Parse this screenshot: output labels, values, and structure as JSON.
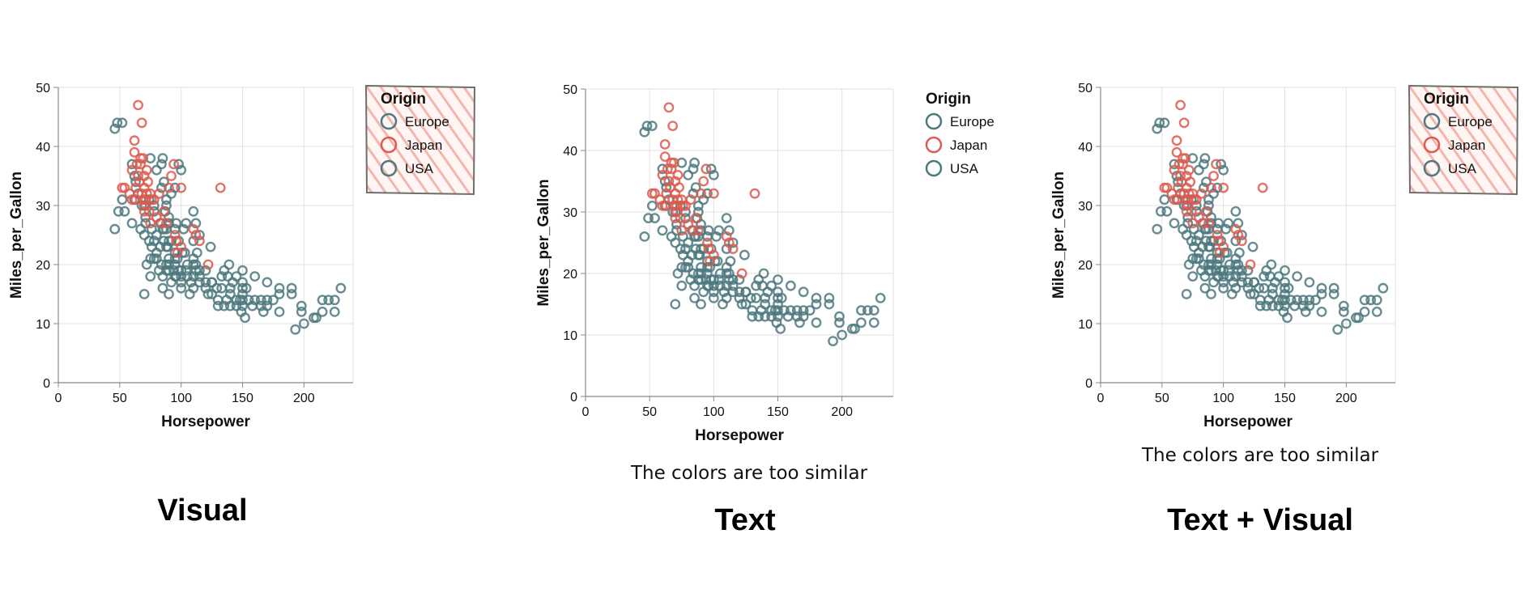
{
  "colors": {
    "Europe": "#4c787e",
    "Japan": "#dc5a4f",
    "USA": "#4c787e",
    "grid": "#e2e2e2",
    "axis": "#888888",
    "hatch_stroke": "#f3b6ae",
    "hatch_border": "#6e6e6e"
  },
  "panel_labels": [
    "Visual",
    "Text",
    "Text + Visual"
  ],
  "captions": [
    "",
    "The colors are too similar",
    "The colors are too similar"
  ],
  "legend_highlight": [
    true,
    false,
    true
  ],
  "chart_data": {
    "type": "scatter",
    "xlabel": "Horsepower",
    "ylabel": "Miles_per_Gallon",
    "xlim": [
      0,
      240
    ],
    "ylim": [
      0,
      50
    ],
    "x_ticks": [
      0,
      50,
      100,
      150,
      200
    ],
    "y_ticks": [
      0,
      10,
      20,
      30,
      40,
      50
    ],
    "grid": true,
    "marker": "hollow-circle",
    "legend": {
      "title": "Origin",
      "placement": "right",
      "entries": [
        "Europe",
        "Japan",
        "USA"
      ]
    },
    "series": [
      {
        "name": "Europe",
        "points": [
          [
            46,
            26
          ],
          [
            48,
            44
          ],
          [
            52,
            44
          ],
          [
            46,
            43
          ],
          [
            54,
            29
          ],
          [
            60,
            27
          ],
          [
            67,
            26
          ],
          [
            70,
            25
          ],
          [
            71,
            27
          ],
          [
            74,
            24
          ],
          [
            76,
            26
          ],
          [
            78,
            24
          ],
          [
            80,
            22
          ],
          [
            85,
            26
          ],
          [
            88,
            23
          ],
          [
            90,
            28
          ],
          [
            95,
            21
          ],
          [
            98,
            24
          ],
          [
            102,
            26
          ],
          [
            103,
            22
          ],
          [
            110,
            21
          ],
          [
            112,
            20
          ],
          [
            115,
            18
          ],
          [
            120,
            19
          ],
          [
            125,
            17
          ],
          [
            133,
            16
          ],
          [
            90,
            20
          ],
          [
            83,
            23
          ],
          [
            78,
            29
          ],
          [
            86,
            26
          ],
          [
            52,
            31
          ],
          [
            49,
            29
          ],
          [
            62,
            31
          ],
          [
            74,
            31
          ],
          [
            71,
            28
          ],
          [
            90,
            24
          ],
          [
            88,
            30
          ]
        ]
      },
      {
        "name": "Japan",
        "points": [
          [
            52,
            33
          ],
          [
            54,
            33
          ],
          [
            58,
            32
          ],
          [
            60,
            31
          ],
          [
            60,
            36
          ],
          [
            62,
            39
          ],
          [
            63,
            31
          ],
          [
            64,
            37
          ],
          [
            65,
            35
          ],
          [
            65,
            47
          ],
          [
            67,
            38
          ],
          [
            68,
            32
          ],
          [
            68,
            44
          ],
          [
            69,
            31
          ],
          [
            70,
            35
          ],
          [
            70,
            29
          ],
          [
            70,
            33
          ],
          [
            71,
            31
          ],
          [
            72,
            36
          ],
          [
            72,
            32
          ],
          [
            73,
            34
          ],
          [
            74,
            29
          ],
          [
            75,
            32
          ],
          [
            75,
            27
          ],
          [
            76,
            31
          ],
          [
            78,
            31
          ],
          [
            80,
            28
          ],
          [
            82,
            32
          ],
          [
            84,
            27
          ],
          [
            86,
            29
          ],
          [
            88,
            27
          ],
          [
            90,
            33
          ],
          [
            92,
            35
          ],
          [
            94,
            37
          ],
          [
            95,
            25
          ],
          [
            96,
            24
          ],
          [
            97,
            22
          ],
          [
            100,
            23
          ],
          [
            100,
            33
          ],
          [
            110,
            26
          ],
          [
            112,
            25
          ],
          [
            115,
            24
          ],
          [
            122,
            20
          ],
          [
            132,
            33
          ],
          [
            62,
            41
          ],
          [
            66,
            34
          ],
          [
            67,
            37
          ],
          [
            69,
            38
          ],
          [
            71,
            30
          ],
          [
            63,
            33
          ]
        ]
      },
      {
        "name": "USA",
        "points": [
          [
            60,
            37
          ],
          [
            62,
            35
          ],
          [
            63,
            34
          ],
          [
            65,
            32
          ],
          [
            68,
            30
          ],
          [
            70,
            30
          ],
          [
            70,
            15
          ],
          [
            72,
            20
          ],
          [
            75,
            18
          ],
          [
            75,
            21
          ],
          [
            78,
            21
          ],
          [
            80,
            21
          ],
          [
            82,
            19
          ],
          [
            84,
            20
          ],
          [
            85,
            18
          ],
          [
            85,
            16
          ],
          [
            86,
            24
          ],
          [
            88,
            20
          ],
          [
            88,
            26
          ],
          [
            88,
            19
          ],
          [
            89,
            23
          ],
          [
            90,
            19
          ],
          [
            90,
            27
          ],
          [
            90,
            21
          ],
          [
            90,
            15
          ],
          [
            92,
            17
          ],
          [
            94,
            19
          ],
          [
            95,
            18
          ],
          [
            95,
            20
          ],
          [
            95,
            22
          ],
          [
            96,
            18
          ],
          [
            97,
            21
          ],
          [
            98,
            19
          ],
          [
            100,
            18
          ],
          [
            100,
            17
          ],
          [
            100,
            16
          ],
          [
            100,
            19
          ],
          [
            101,
            22
          ],
          [
            104,
            19
          ],
          [
            105,
            18
          ],
          [
            105,
            20
          ],
          [
            107,
            15
          ],
          [
            108,
            17
          ],
          [
            110,
            18
          ],
          [
            110,
            16
          ],
          [
            110,
            20
          ],
          [
            112,
            19
          ],
          [
            113,
            22
          ],
          [
            115,
            17
          ],
          [
            115,
            19
          ],
          [
            120,
            17
          ],
          [
            120,
            16
          ],
          [
            122,
            15
          ],
          [
            125,
            15
          ],
          [
            125,
            17
          ],
          [
            129,
            16
          ],
          [
            130,
            13
          ],
          [
            130,
            14
          ],
          [
            133,
            18
          ],
          [
            135,
            13
          ],
          [
            137,
            14
          ],
          [
            140,
            13
          ],
          [
            140,
            15
          ],
          [
            140,
            16
          ],
          [
            142,
            17
          ],
          [
            145,
            13
          ],
          [
            145,
            14
          ],
          [
            148,
            14
          ],
          [
            149,
            12
          ],
          [
            150,
            13
          ],
          [
            150,
            14
          ],
          [
            150,
            15
          ],
          [
            150,
            16
          ],
          [
            150,
            17
          ],
          [
            152,
            11
          ],
          [
            153,
            16
          ],
          [
            155,
            14
          ],
          [
            158,
            13
          ],
          [
            160,
            14
          ],
          [
            165,
            13
          ],
          [
            165,
            14
          ],
          [
            167,
            12
          ],
          [
            170,
            13
          ],
          [
            170,
            14
          ],
          [
            175,
            14
          ],
          [
            180,
            12
          ],
          [
            190,
            16
          ],
          [
            193,
            9
          ],
          [
            198,
            12
          ],
          [
            200,
            10
          ],
          [
            208,
            11
          ],
          [
            210,
            11
          ],
          [
            215,
            14
          ],
          [
            220,
            14
          ],
          [
            225,
            12
          ],
          [
            225,
            14
          ],
          [
            230,
            16
          ],
          [
            78,
            30
          ],
          [
            80,
            36
          ],
          [
            84,
            37
          ],
          [
            86,
            34
          ],
          [
            88,
            31
          ],
          [
            92,
            32
          ],
          [
            95,
            33
          ],
          [
            98,
            37
          ],
          [
            100,
            36
          ],
          [
            75,
            38
          ],
          [
            84,
            33
          ],
          [
            87,
            29
          ],
          [
            95,
            26
          ],
          [
            80,
            25
          ],
          [
            83,
            27
          ],
          [
            76,
            23
          ],
          [
            92,
            24
          ],
          [
            96,
            27
          ],
          [
            104,
            27
          ],
          [
            110,
            29
          ],
          [
            115,
            25
          ],
          [
            124,
            23
          ],
          [
            85,
            38
          ],
          [
            110,
            24
          ],
          [
            112,
            27
          ],
          [
            135,
            19
          ],
          [
            138,
            18
          ],
          [
            150,
            19
          ],
          [
            160,
            18
          ],
          [
            170,
            17
          ],
          [
            180,
            16
          ],
          [
            139,
            20
          ],
          [
            145,
            18
          ],
          [
            180,
            15
          ],
          [
            190,
            15
          ],
          [
            198,
            13
          ],
          [
            215,
            12
          ]
        ]
      }
    ]
  }
}
